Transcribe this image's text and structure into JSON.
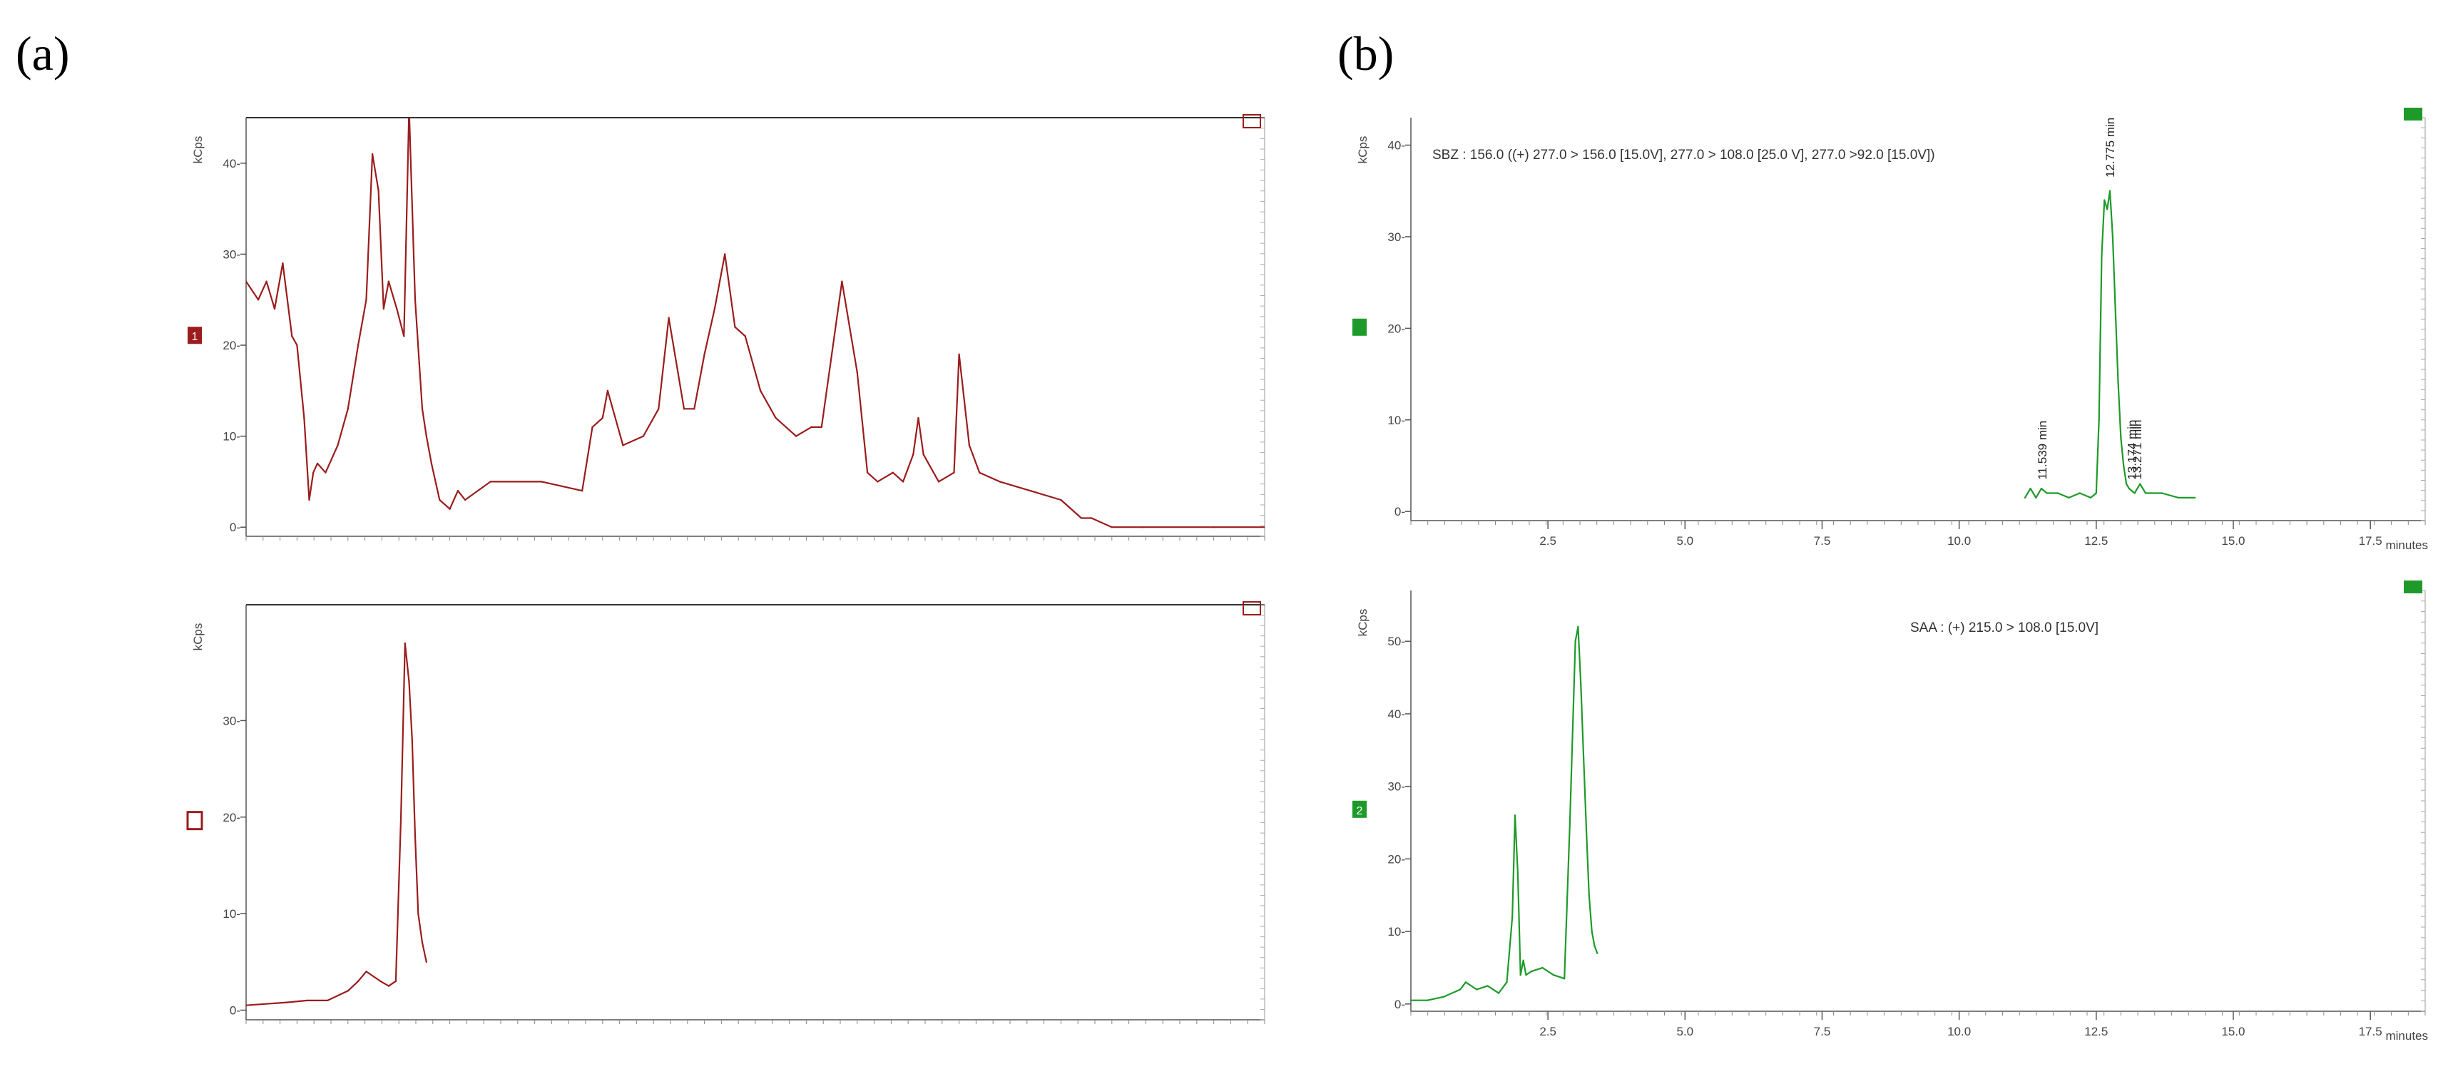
{
  "figure_labels": {
    "a": "(a)",
    "b": "(b)"
  },
  "chart_data": [
    {
      "id": "a1",
      "type": "line",
      "panel": "a",
      "color": "#9b1c1c",
      "ylabel": "kCps",
      "trace_marker": "1",
      "yticks": [
        0,
        10,
        20,
        30,
        40
      ],
      "ytick_labels": [
        "0-",
        "10-",
        "20-",
        "30-",
        "40-"
      ],
      "ylim": [
        -1,
        45
      ],
      "xlim": [
        0,
        1
      ],
      "series": [
        {
          "x": [
            0,
            0.012,
            0.02,
            0.028,
            0.036,
            0.045,
            0.05,
            0.057,
            0.062,
            0.066,
            0.07,
            0.078,
            0.09,
            0.1,
            0.11,
            0.118,
            0.124,
            0.13,
            0.135,
            0.14,
            0.148,
            0.155,
            0.16,
            0.166,
            0.17,
            0.173,
            0.177,
            0.182,
            0.19,
            0.2,
            0.208,
            0.215,
            0.24,
            0.29,
            0.33,
            0.34,
            0.35,
            0.355,
            0.37,
            0.39,
            0.405,
            0.415,
            0.43,
            0.44,
            0.45,
            0.46,
            0.47,
            0.48,
            0.49,
            0.505,
            0.52,
            0.54,
            0.555,
            0.565,
            0.585,
            0.6,
            0.61,
            0.62,
            0.635,
            0.645,
            0.655,
            0.66,
            0.665,
            0.68,
            0.695,
            0.7,
            0.71,
            0.72,
            0.74,
            0.77,
            0.8,
            0.82,
            0.83,
            0.85,
            0.88,
            0.95,
            1.0
          ],
          "y": [
            27,
            25,
            27,
            24,
            29,
            21,
            20,
            12,
            3,
            6,
            7,
            6,
            9,
            13,
            20,
            25,
            41,
            37,
            24,
            27,
            24,
            21,
            46,
            25,
            18,
            13,
            10,
            7,
            3,
            2,
            4,
            3,
            5,
            5,
            4,
            11,
            12,
            15,
            9,
            10,
            13,
            23,
            13,
            13,
            19,
            24,
            30,
            22,
            21,
            15,
            12,
            10,
            11,
            11,
            27,
            17,
            6,
            5,
            6,
            5,
            8,
            12,
            8,
            5,
            6,
            19,
            9,
            6,
            5,
            4,
            3,
            1,
            1,
            0,
            0,
            0,
            0
          ]
        }
      ]
    },
    {
      "id": "a2",
      "type": "line",
      "panel": "a",
      "color": "#9b1c1c",
      "ylabel": "kCps",
      "trace_marker": "",
      "yticks": [
        0,
        10,
        20,
        30
      ],
      "ytick_labels": [
        "0-",
        "10-",
        "20-",
        "30-"
      ],
      "ylim": [
        -1,
        42
      ],
      "xlim": [
        0,
        1
      ],
      "series": [
        {
          "x": [
            0,
            0.04,
            0.06,
            0.08,
            0.1,
            0.11,
            0.118,
            0.125,
            0.132,
            0.14,
            0.147,
            0.152,
            0.156,
            0.16,
            0.163,
            0.166,
            0.169,
            0.173,
            0.177
          ],
          "y": [
            0.5,
            0.8,
            1,
            1,
            2,
            3,
            4,
            3.5,
            3,
            2.5,
            3,
            20,
            38,
            34,
            28,
            18,
            10,
            7,
            5
          ]
        }
      ]
    },
    {
      "id": "b1",
      "type": "line",
      "panel": "b",
      "color": "#1e9a2a",
      "title": "SBZ : 156.0 ((+) 277.0 > 156.0 [15.0V], 277.0 > 108.0 [25.0 V], 277.0 >92.0 [15.0V])",
      "ylabel": "kCps",
      "trace_marker": "",
      "xlabel": "minutes",
      "xticks": [
        2.5,
        5.0,
        7.5,
        10.0,
        12.5,
        15.0,
        17.5
      ],
      "xtick_labels": [
        "2.5",
        "5.0",
        "7.5",
        "10.0",
        "12.5",
        "15.0",
        "17.5"
      ],
      "yticks": [
        0,
        10,
        20,
        30,
        40
      ],
      "ytick_labels": [
        "0-",
        "10-",
        "20-",
        "30-",
        "40-"
      ],
      "xlim": [
        0,
        18.5
      ],
      "ylim": [
        -1,
        43
      ],
      "peak_labels": [
        {
          "x": 11.539,
          "y": 3,
          "text": "11.539 min"
        },
        {
          "x": 12.775,
          "y": 36,
          "text": "12.775 min"
        },
        {
          "x": 13.174,
          "y": 3,
          "text": "13.174 min"
        },
        {
          "x": 13.271,
          "y": 3,
          "text": "13.271 min"
        }
      ],
      "series": [
        {
          "x": [
            11.2,
            11.3,
            11.4,
            11.5,
            11.6,
            11.8,
            12.0,
            12.2,
            12.4,
            12.5,
            12.55,
            12.6,
            12.65,
            12.7,
            12.75,
            12.8,
            12.85,
            12.9,
            12.95,
            13.0,
            13.05,
            13.1,
            13.2,
            13.3,
            13.4,
            13.5,
            13.7,
            14.0,
            14.3
          ],
          "y": [
            1.5,
            2.5,
            1.5,
            2.5,
            2,
            2,
            1.5,
            2,
            1.5,
            2,
            10,
            28,
            34,
            33,
            35,
            30,
            22,
            14,
            8,
            5,
            3,
            2.5,
            2,
            3,
            2,
            2,
            2,
            1.5,
            1.5
          ]
        }
      ]
    },
    {
      "id": "b2",
      "type": "line",
      "panel": "b",
      "color": "#1e9a2a",
      "title": "SAA : (+) 215.0 > 108.0 [15.0V]",
      "ylabel": "kCps",
      "trace_marker": "2",
      "xlabel": "minutes",
      "xticks": [
        2.5,
        5.0,
        7.5,
        10.0,
        12.5,
        15.0,
        17.5
      ],
      "xtick_labels": [
        "2.5",
        "5.0",
        "7.5",
        "10.0",
        "12.5",
        "15.0",
        "17.5"
      ],
      "yticks": [
        0,
        10,
        20,
        30,
        40,
        50
      ],
      "ytick_labels": [
        "0-",
        "10-",
        "20-",
        "30-",
        "40-",
        "50-"
      ],
      "xlim": [
        0,
        18.5
      ],
      "ylim": [
        -1,
        57
      ],
      "series": [
        {
          "x": [
            0,
            0.3,
            0.6,
            0.9,
            1.0,
            1.2,
            1.4,
            1.6,
            1.75,
            1.85,
            1.9,
            1.95,
            2.0,
            2.05,
            2.1,
            2.2,
            2.4,
            2.6,
            2.8,
            2.9,
            3.0,
            3.05,
            3.1,
            3.15,
            3.2,
            3.25,
            3.3,
            3.35,
            3.4
          ],
          "y": [
            0.5,
            0.5,
            1,
            2,
            3,
            2,
            2.5,
            1.5,
            3,
            12,
            26,
            18,
            4,
            6,
            4,
            4.5,
            5,
            4,
            3.5,
            25,
            50,
            52,
            44,
            34,
            24,
            15,
            10,
            8,
            7
          ]
        }
      ]
    }
  ]
}
